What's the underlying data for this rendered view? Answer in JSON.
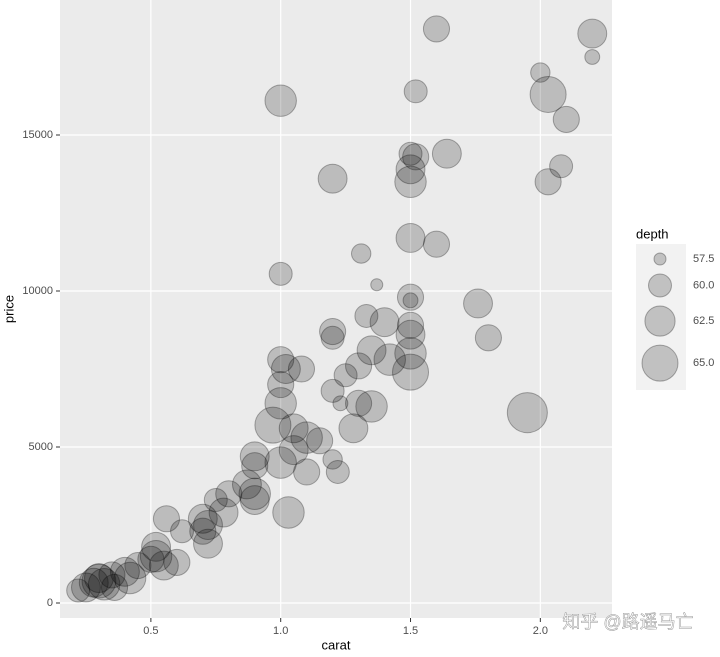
{
  "chart_data": {
    "type": "bubble",
    "x_label": "carat",
    "y_label": "price",
    "size_label": "depth",
    "xlim": [
      0.15,
      2.276
    ],
    "ylim": [
      -481,
      19327
    ],
    "xticks": [
      0.5,
      {
        "value": 1,
        "label": "1.0"
      },
      1.5,
      {
        "value": 2,
        "label": "2.0"
      }
    ],
    "yticks": [
      0,
      5000,
      10000,
      15000
    ],
    "size_legend": [
      57.5,
      {
        "value": 60,
        "label": "60.0"
      },
      62.5,
      {
        "value": 65,
        "label": "65.0"
      }
    ],
    "grid": true,
    "color": "#000000",
    "x": [
      1.6,
      2.2,
      2.2,
      2.0,
      2.03,
      1.0,
      1.52,
      2.1,
      1.64,
      1.5,
      1.52,
      1.5,
      1.5,
      2.08,
      2.03,
      1.2,
      1.5,
      1.6,
      1.31,
      1.0,
      1.37,
      1.5,
      1.5,
      1.76,
      1.8,
      1.5,
      1.5,
      1.5,
      1.5,
      1.4,
      1.33,
      1.2,
      1.2,
      1.35,
      1.3,
      1.42,
      1.0,
      1.02,
      1.0,
      1.08,
      1.25,
      1.2,
      1.23,
      1.3,
      1.35,
      1.0,
      0.97,
      1.05,
      1.28,
      1.1,
      1.15,
      1.05,
      0.9,
      1.0,
      0.9,
      1.2,
      1.1,
      1.22,
      0.87,
      0.9,
      0.8,
      0.9,
      0.75,
      1.03,
      0.78,
      0.7,
      0.72,
      0.7,
      0.72,
      0.56,
      0.62,
      0.52,
      0.52,
      0.5,
      0.6,
      0.55,
      0.45,
      0.4,
      0.42,
      0.35,
      0.3,
      0.32,
      0.3,
      0.28,
      0.25,
      0.22,
      0.36,
      1.95
    ],
    "y": [
      18400,
      18250,
      17500,
      17000,
      16300,
      16100,
      16400,
      15500,
      14400,
      14400,
      14300,
      13900,
      13500,
      14000,
      13500,
      13600,
      11700,
      11500,
      11200,
      10550,
      10200,
      9800,
      9700,
      9600,
      8500,
      8900,
      8600,
      8000,
      7400,
      9000,
      9200,
      8700,
      8500,
      8100,
      7600,
      7800,
      7800,
      7500,
      7000,
      7500,
      7300,
      6800,
      6400,
      6400,
      6300,
      6400,
      5700,
      5600,
      5600,
      5300,
      5200,
      4900,
      4700,
      4500,
      4400,
      4600,
      4200,
      4200,
      3800,
      3500,
      3500,
      3300,
      3300,
      2900,
      2900,
      2700,
      2500,
      2300,
      1900,
      2700,
      2300,
      1800,
      1500,
      1400,
      1300,
      1200,
      1200,
      1000,
      800,
      900,
      800,
      600,
      700,
      650,
      500,
      400,
      500,
      6100
    ],
    "size": [
      61,
      62,
      58,
      59,
      65,
      63,
      60,
      61,
      62,
      60,
      61,
      62,
      63,
      60,
      61,
      62,
      62,
      61,
      59,
      60,
      57.5,
      61,
      58,
      62,
      61,
      61,
      62,
      63,
      65,
      62,
      60,
      61,
      60,
      62,
      61,
      63,
      61,
      62,
      61,
      61,
      60,
      60,
      58,
      61,
      63,
      63,
      65,
      62,
      62,
      63,
      61,
      62,
      62,
      63,
      61,
      59,
      61,
      60,
      62,
      63,
      61,
      62,
      60,
      63,
      62,
      62,
      62,
      61,
      62,
      61,
      60,
      62,
      63,
      61,
      61,
      62,
      61,
      62,
      63,
      61,
      62,
      63,
      64,
      62,
      62,
      60,
      61,
      67
    ]
  },
  "watermark": "知乎 @路遥马亡"
}
